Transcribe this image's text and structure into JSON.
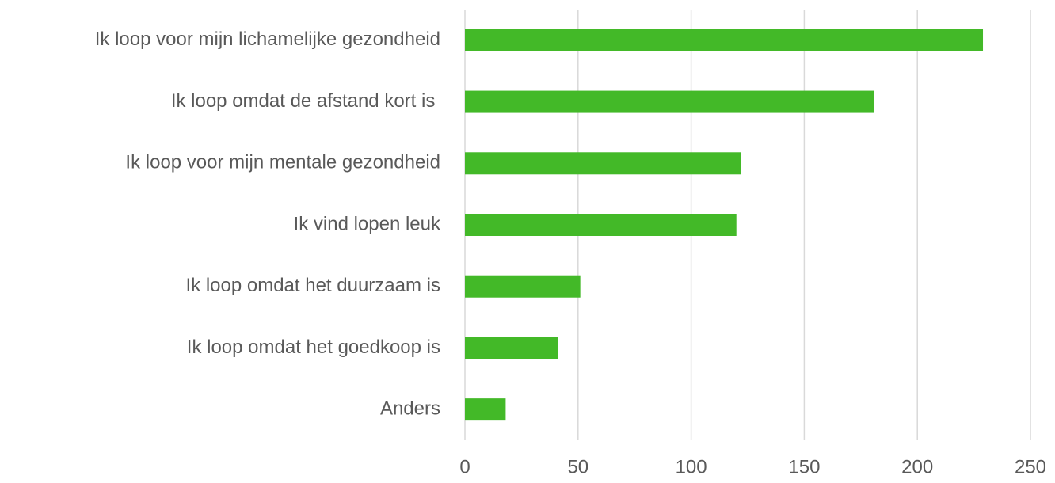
{
  "chart_data": {
    "type": "bar",
    "orientation": "horizontal",
    "categories": [
      "Ik loop voor mijn lichamelijke gezondheid",
      "Ik loop omdat de afstand kort is ",
      "Ik loop voor mijn mentale gezondheid",
      "Ik vind lopen leuk",
      "Ik loop omdat het duurzaam is",
      "Ik loop omdat het goedkoop is",
      "Anders"
    ],
    "values": [
      229,
      181,
      122,
      120,
      51,
      41,
      18
    ],
    "color": "#43b928",
    "xlim": [
      0,
      250
    ],
    "xticks": [
      0,
      50,
      100,
      150,
      200,
      250
    ],
    "grid": true
  }
}
